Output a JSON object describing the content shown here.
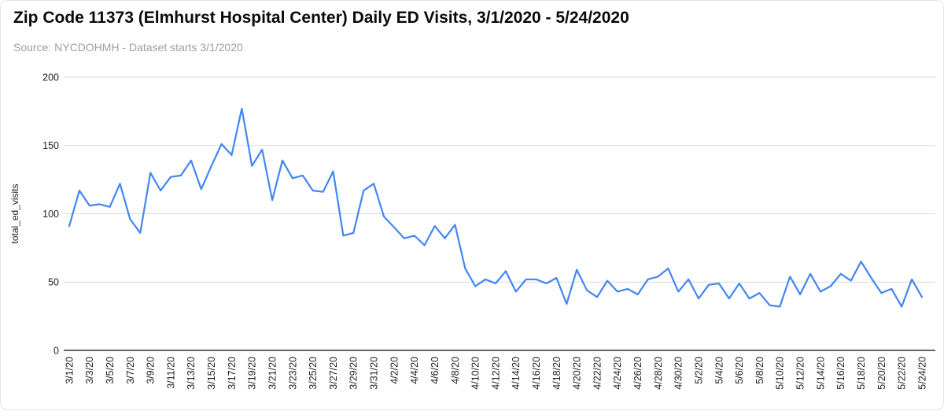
{
  "header": {
    "title": "Zip Code 11373 (Elmhurst Hospital Center) Daily ED Visits, 3/1/2020 - 5/24/2020",
    "source": "Source: NYCDOHMH - Dataset starts 3/1/2020"
  },
  "chart_data": {
    "type": "line",
    "title": "Zip Code 11373 (Elmhurst Hospital Center) Daily ED Visits, 3/1/2020 - 5/24/2020",
    "xlabel": "",
    "ylabel": "total_ed_visits",
    "ylim": [
      0,
      200
    ],
    "yticks": [
      0,
      50,
      100,
      150,
      200
    ],
    "grid": true,
    "legend": "none",
    "x_tick_every": 2,
    "x": [
      "3/1/20",
      "3/2/20",
      "3/3/20",
      "3/4/20",
      "3/5/20",
      "3/6/20",
      "3/7/20",
      "3/8/20",
      "3/9/20",
      "3/10/20",
      "3/11/20",
      "3/12/20",
      "3/13/20",
      "3/14/20",
      "3/15/20",
      "3/16/20",
      "3/17/20",
      "3/18/20",
      "3/19/20",
      "3/20/20",
      "3/21/20",
      "3/22/20",
      "3/23/20",
      "3/24/20",
      "3/25/20",
      "3/26/20",
      "3/27/20",
      "3/28/20",
      "3/29/20",
      "3/30/20",
      "3/31/20",
      "4/1/20",
      "4/2/20",
      "4/3/20",
      "4/4/20",
      "4/5/20",
      "4/6/20",
      "4/7/20",
      "4/8/20",
      "4/9/20",
      "4/10/20",
      "4/11/20",
      "4/12/20",
      "4/13/20",
      "4/14/20",
      "4/15/20",
      "4/16/20",
      "4/17/20",
      "4/18/20",
      "4/19/20",
      "4/20/20",
      "4/21/20",
      "4/22/20",
      "4/23/20",
      "4/24/20",
      "4/25/20",
      "4/26/20",
      "4/27/20",
      "4/28/20",
      "4/29/20",
      "4/30/20",
      "5/1/20",
      "5/2/20",
      "5/3/20",
      "5/4/20",
      "5/5/20",
      "5/6/20",
      "5/7/20",
      "5/8/20",
      "5/9/20",
      "5/10/20",
      "5/11/20",
      "5/12/20",
      "5/13/20",
      "5/14/20",
      "5/15/20",
      "5/16/20",
      "5/17/20",
      "5/18/20",
      "5/19/20",
      "5/20/20",
      "5/21/20",
      "5/22/20",
      "5/23/20",
      "5/24/20"
    ],
    "series": [
      {
        "name": "total_ed_visits",
        "color": "#4285f4",
        "values": [
          91,
          117,
          106,
          107,
          105,
          122,
          96,
          86,
          130,
          117,
          127,
          128,
          139,
          118,
          135,
          151,
          143,
          177,
          135,
          147,
          110,
          139,
          126,
          128,
          117,
          116,
          131,
          84,
          86,
          117,
          122,
          98,
          90,
          82,
          84,
          77,
          91,
          82,
          92,
          60,
          47,
          52,
          49,
          58,
          43,
          52,
          52,
          49,
          53,
          34,
          59,
          44,
          39,
          51,
          43,
          45,
          41,
          52,
          54,
          60,
          43,
          52,
          38,
          48,
          49,
          38,
          49,
          38,
          42,
          33,
          32,
          54,
          41,
          56,
          43,
          47,
          56,
          51,
          65,
          53,
          42,
          45,
          32,
          52,
          39
        ]
      }
    ],
    "colors": {
      "line": "#4285f4",
      "gridline": "#dadada",
      "axis_line": "#333333",
      "tick_label": "#1f1f1f",
      "axis_title": "#1f1f1f"
    }
  }
}
